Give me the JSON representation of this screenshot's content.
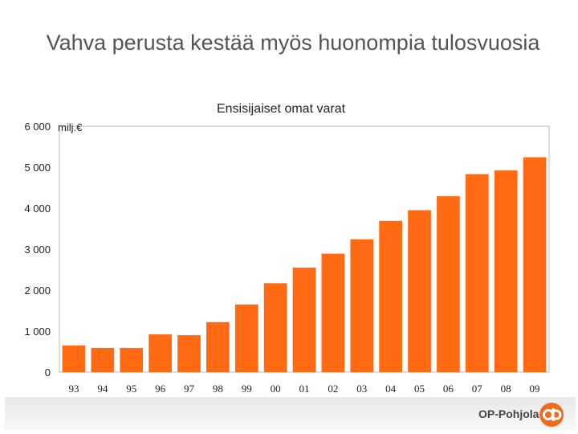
{
  "slide": {
    "title": "Vahva perusta kestää myös huonompia tulosvuosia"
  },
  "footer": {
    "brand": "OP-Pohjola"
  },
  "colors": {
    "bar": "#ff6a13",
    "logo": "#f26b1d",
    "text": "#222222"
  },
  "chart_data": {
    "type": "bar",
    "title": "Ensisijaiset omat varat",
    "ylabel": "milj.€",
    "xlabel": "",
    "categories": [
      "93",
      "94",
      "95",
      "96",
      "97",
      "98",
      "99",
      "00",
      "01",
      "02",
      "03",
      "04",
      "05",
      "06",
      "07",
      "08",
      "09"
    ],
    "values": [
      650,
      590,
      590,
      920,
      900,
      1220,
      1650,
      2170,
      2550,
      2890,
      3240,
      3690,
      3950,
      4290,
      4830,
      4920,
      5240
    ],
    "ylim": [
      0,
      6000
    ],
    "yticks": [
      0,
      1000,
      2000,
      3000,
      4000,
      5000,
      6000
    ],
    "ytick_labels": [
      "0",
      "1 000",
      "2 000",
      "3 000",
      "4 000",
      "5 000",
      "6 000"
    ],
    "grid": false,
    "legend": "none"
  }
}
